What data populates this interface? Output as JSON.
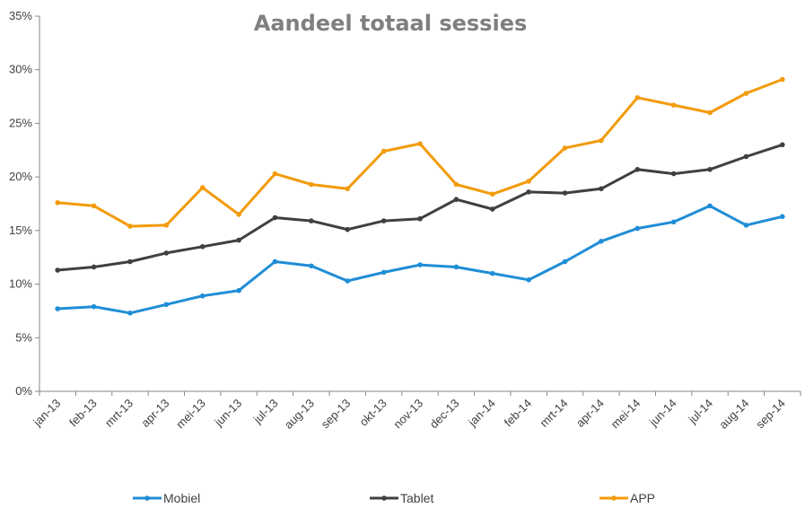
{
  "chart_data": {
    "type": "line",
    "title": "Aandeel totaal sessies",
    "xlabel": "",
    "ylabel": "",
    "ylim": [
      0,
      35
    ],
    "y_ticks": [
      "0%",
      "5%",
      "10%",
      "15%",
      "20%",
      "25%",
      "30%",
      "35%"
    ],
    "grid": false,
    "legend_position": "bottom",
    "categories": [
      "jan-13",
      "feb-13",
      "mrt-13",
      "apr-13",
      "mei-13",
      "jun-13",
      "jul-13",
      "aug-13",
      "sep-13",
      "okt-13",
      "nov-13",
      "dec-13",
      "jan-14",
      "feb-14",
      "mrt-14",
      "apr-14",
      "mei-14",
      "jun-14",
      "jul-14",
      "aug-14",
      "sep-14"
    ],
    "series": [
      {
        "name": "Mobiel",
        "color": "#1f8dd6",
        "values": [
          7.7,
          7.9,
          7.3,
          8.1,
          8.9,
          9.4,
          12.1,
          11.7,
          10.3,
          11.1,
          11.8,
          11.6,
          11.0,
          10.4,
          12.1,
          14.0,
          15.2,
          15.8,
          17.3,
          15.5,
          16.3
        ]
      },
      {
        "name": "Tablet",
        "color": "#404040",
        "values": [
          11.3,
          11.6,
          12.1,
          12.9,
          13.5,
          14.1,
          16.2,
          15.9,
          15.1,
          15.9,
          16.1,
          17.9,
          17.0,
          18.6,
          18.5,
          18.9,
          20.7,
          20.3,
          20.7,
          21.9,
          23.0
        ]
      },
      {
        "name": "APP",
        "color": "#f29b0c",
        "values": [
          17.6,
          17.3,
          15.4,
          15.5,
          19.0,
          16.5,
          20.3,
          19.3,
          18.9,
          22.4,
          23.1,
          19.3,
          18.4,
          19.6,
          22.7,
          23.4,
          27.4,
          26.7,
          26.0,
          27.8,
          29.1
        ]
      }
    ]
  }
}
